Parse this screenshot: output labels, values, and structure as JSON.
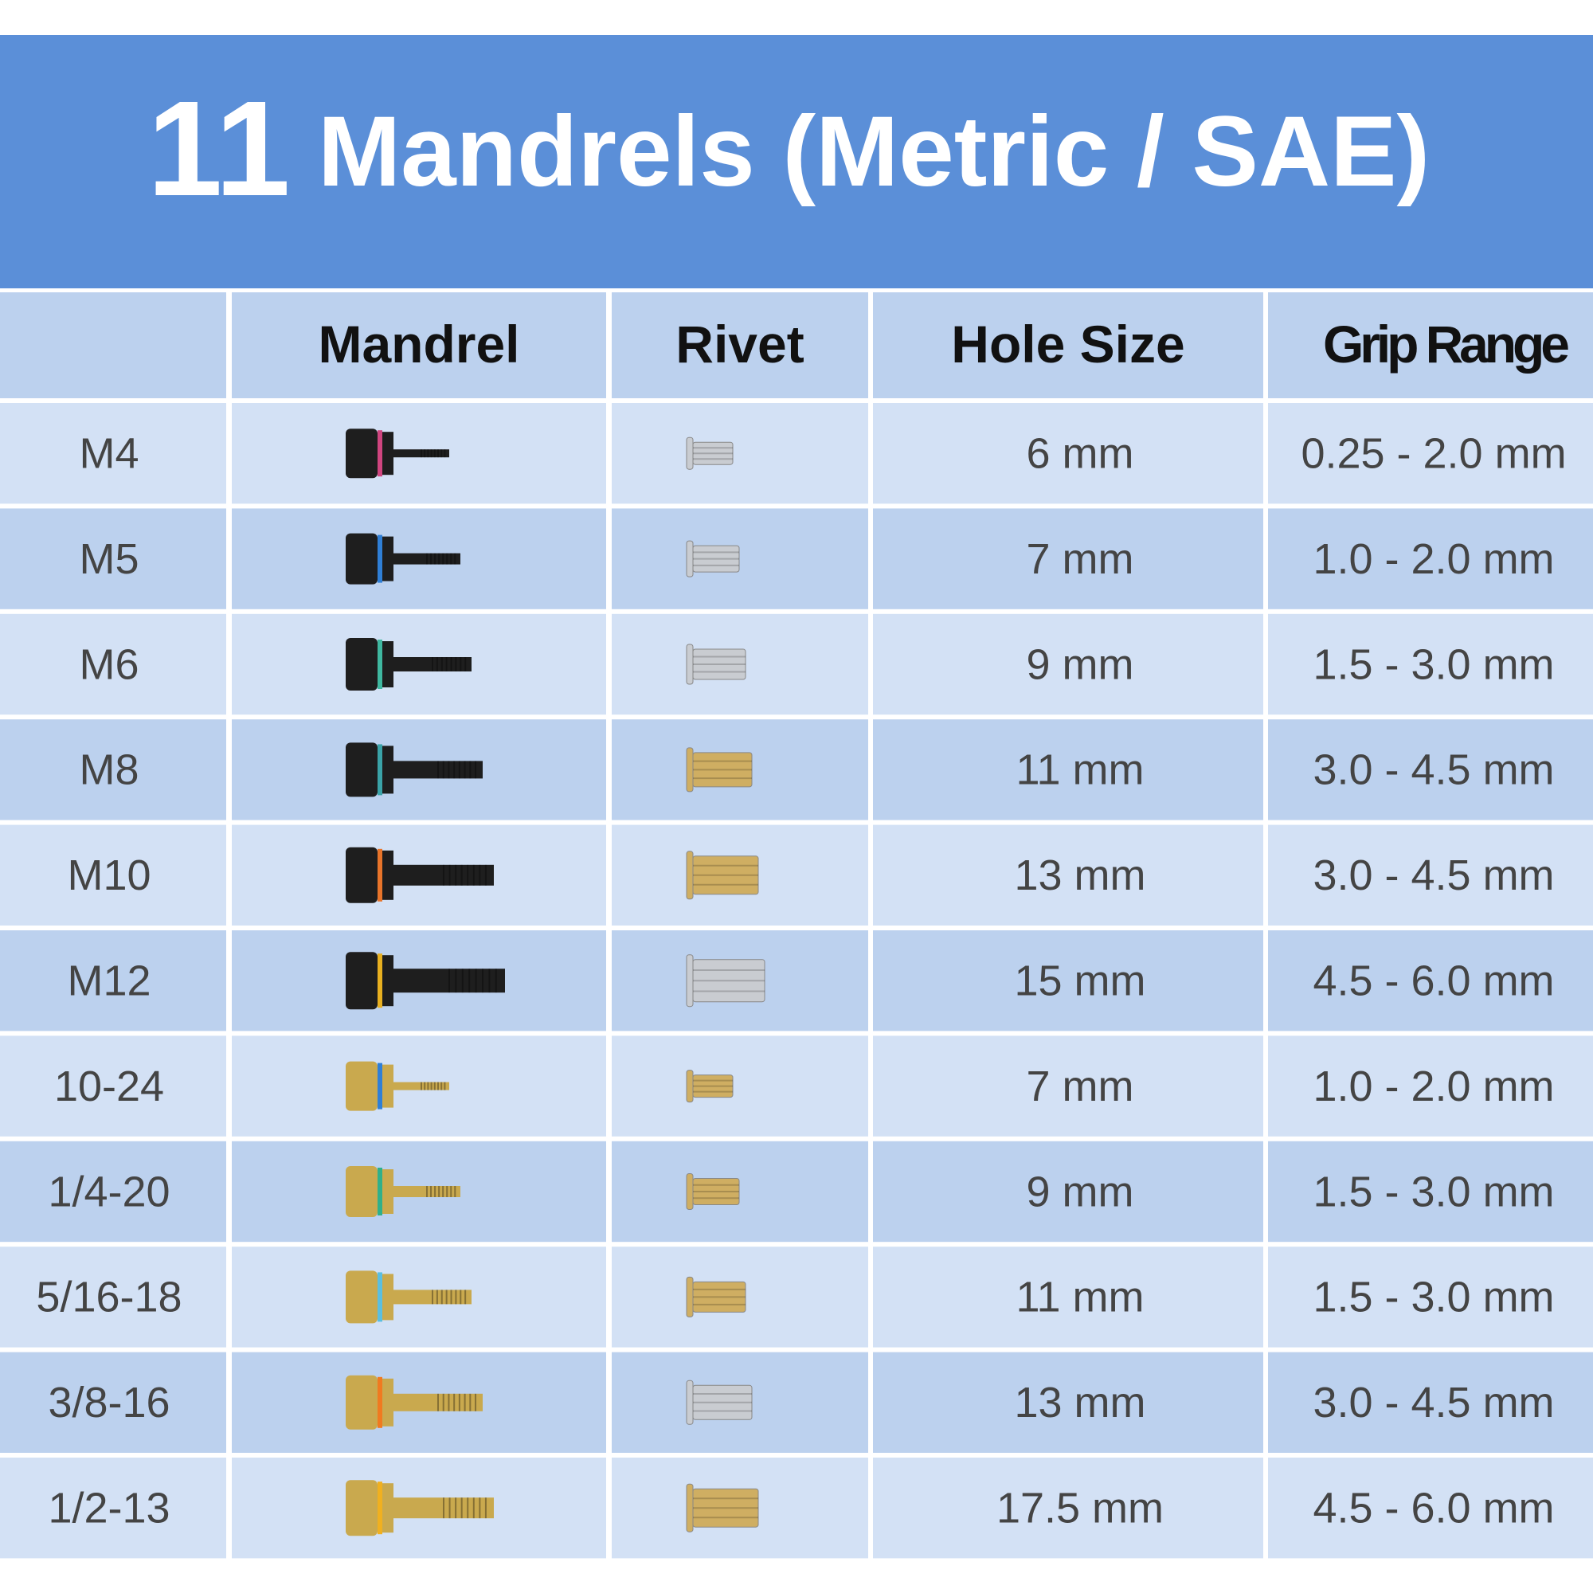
{
  "header": {
    "title_number": "11",
    "title_text": "Mandrels (Metric / SAE)"
  },
  "table": {
    "columns": [
      "Mandrel",
      "Rivet",
      "Hole Size",
      "Grip Range"
    ],
    "rows": [
      {
        "size": "M4",
        "hole_size": "6 mm",
        "grip_range": "0.25 - 2.0 mm",
        "mandrel_finish": "#1e1e1e",
        "ring_color": "#d0457f",
        "rivet_color": "#c9ccd1"
      },
      {
        "size": "M5",
        "hole_size": "7 mm",
        "grip_range": "1.0 - 2.0 mm",
        "mandrel_finish": "#1e1e1e",
        "ring_color": "#2f7fd6",
        "rivet_color": "#c9ccd1"
      },
      {
        "size": "M6",
        "hole_size": "9 mm",
        "grip_range": "1.5 - 3.0 mm",
        "mandrel_finish": "#1e1e1e",
        "ring_color": "#3fb8a0",
        "rivet_color": "#c9ccd1"
      },
      {
        "size": "M8",
        "hole_size": "11 mm",
        "grip_range": "3.0 - 4.5 mm",
        "mandrel_finish": "#1e1e1e",
        "ring_color": "#3aa3a8",
        "rivet_color": "#cfae62"
      },
      {
        "size": "M10",
        "hole_size": "13 mm",
        "grip_range": "3.0 - 4.5 mm",
        "mandrel_finish": "#1e1e1e",
        "ring_color": "#e8742a",
        "rivet_color": "#cfae62"
      },
      {
        "size": "M12",
        "hole_size": "15 mm",
        "grip_range": "4.5 - 6.0 mm",
        "mandrel_finish": "#1e1e1e",
        "ring_color": "#e8b020",
        "rivet_color": "#c9ccd1"
      },
      {
        "size": "10-24",
        "hole_size": "7 mm",
        "grip_range": "1.0 - 2.0 mm",
        "mandrel_finish": "#c9a94e",
        "ring_color": "#2f7fd6",
        "rivet_color": "#cfae62"
      },
      {
        "size": "1/4-20",
        "hole_size": "9 mm",
        "grip_range": "1.5 - 3.0 mm",
        "mandrel_finish": "#c9a94e",
        "ring_color": "#2fb08a",
        "rivet_color": "#cfae62"
      },
      {
        "size": "5/16-18",
        "hole_size": "11 mm",
        "grip_range": "1.5 - 3.0 mm",
        "mandrel_finish": "#c9a94e",
        "ring_color": "#5bbfe0",
        "rivet_color": "#cfae62"
      },
      {
        "size": "3/8-16",
        "hole_size": "13 mm",
        "grip_range": "3.0 - 4.5 mm",
        "mandrel_finish": "#c9a94e",
        "ring_color": "#f07a20",
        "rivet_color": "#c9ccd1"
      },
      {
        "size": "1/2-13",
        "hole_size": "17.5 mm",
        "grip_range": "4.5 - 6.0 mm",
        "mandrel_finish": "#c9a94e",
        "ring_color": "#f0b020",
        "rivet_color": "#cfae62"
      }
    ]
  }
}
